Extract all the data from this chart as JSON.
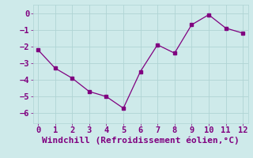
{
  "x": [
    0,
    1,
    2,
    3,
    4,
    5,
    6,
    7,
    8,
    9,
    10,
    11,
    12
  ],
  "y": [
    -2.2,
    -3.3,
    -3.9,
    -4.7,
    -5.0,
    -5.7,
    -3.5,
    -1.9,
    -2.4,
    -0.7,
    -0.1,
    -0.9,
    -1.2
  ],
  "line_color": "#800080",
  "marker": "s",
  "marker_size": 2.5,
  "xlabel": "Windchill (Refroidissement éolien,°C)",
  "xlim": [
    -0.3,
    12.3
  ],
  "ylim": [
    -6.6,
    0.5
  ],
  "xticks": [
    0,
    1,
    2,
    3,
    4,
    5,
    6,
    7,
    8,
    9,
    10,
    11,
    12
  ],
  "yticks": [
    0,
    -1,
    -2,
    -3,
    -4,
    -5,
    -6
  ],
  "background_color": "#ceeaea",
  "grid_color": "#afd4d4",
  "tick_color": "#800080",
  "label_color": "#800080",
  "font_size": 7.5,
  "xlabel_fontsize": 8
}
